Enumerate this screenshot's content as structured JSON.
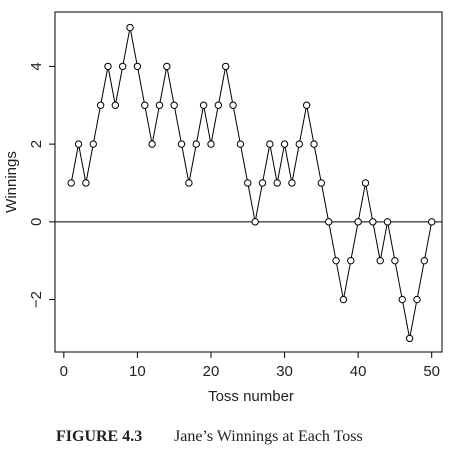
{
  "chart_data": {
    "type": "line",
    "x_label": "Toss number",
    "y_label": "Winnings",
    "x": [
      1,
      2,
      3,
      4,
      5,
      6,
      7,
      8,
      9,
      10,
      11,
      12,
      13,
      14,
      15,
      16,
      17,
      18,
      19,
      20,
      21,
      22,
      23,
      24,
      25,
      26,
      27,
      28,
      29,
      30,
      31,
      32,
      33,
      34,
      35,
      36,
      37,
      38,
      39,
      40,
      41,
      42,
      43,
      44,
      45,
      46,
      47,
      48,
      49,
      50
    ],
    "values": [
      1,
      2,
      1,
      2,
      3,
      4,
      3,
      4,
      5,
      4,
      3,
      2,
      3,
      4,
      3,
      2,
      1,
      2,
      3,
      2,
      3,
      4,
      3,
      2,
      1,
      0,
      1,
      2,
      1,
      2,
      1,
      2,
      3,
      2,
      1,
      0,
      -1,
      -2,
      -1,
      0,
      1,
      0,
      -1,
      0,
      -1,
      -2,
      -3,
      -2,
      -1,
      0
    ],
    "color": "#000000",
    "markers": true,
    "hline": 0,
    "xlim": [
      -1.2,
      51.4
    ],
    "xticks": [
      0,
      10,
      20,
      30,
      40,
      50
    ],
    "ylim": [
      -3.35,
      5.4
    ],
    "yticks": [
      {
        "value": -2,
        "label": "−2"
      },
      0,
      2,
      4
    ],
    "caption": {
      "label": "FIGURE 4.3",
      "text": "Jane’s Winnings at Each Toss"
    }
  }
}
